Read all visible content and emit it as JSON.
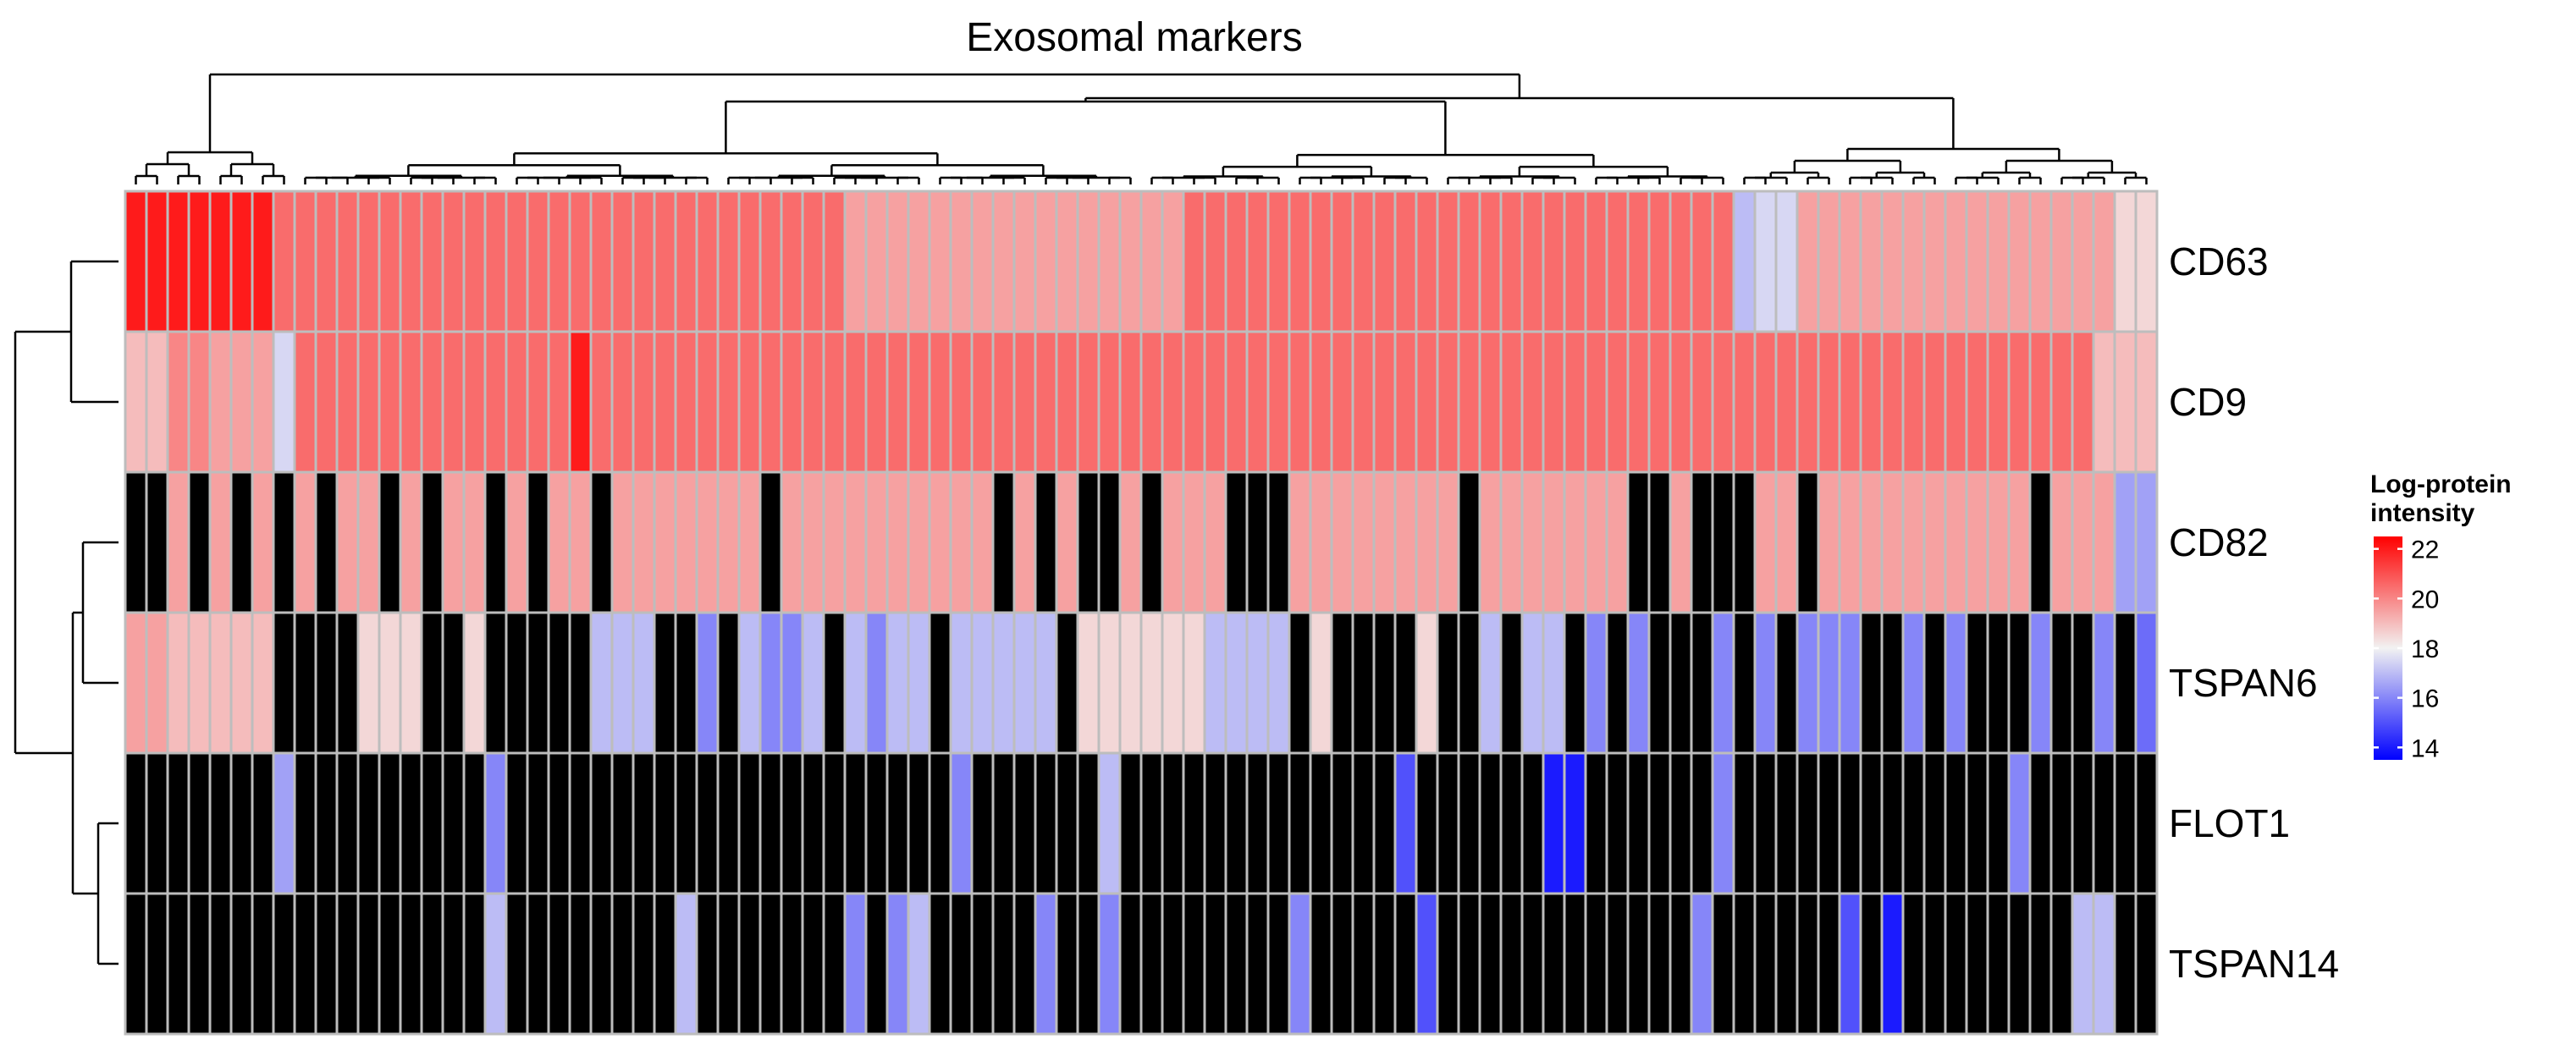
{
  "chart_data": {
    "type": "heatmap",
    "title": "Exosomal markers",
    "rows": [
      "CD63",
      "CD9",
      "CD82",
      "TSPAN6",
      "FLOT1",
      "TSPAN14"
    ],
    "n_columns": 96,
    "missing_color": "#000000",
    "cell_border_color": "#bdbdbd",
    "legend": {
      "title_line1": "Log-protein",
      "title_line2": "intensity",
      "position": "right",
      "ticks": [
        22,
        20,
        18,
        16,
        14
      ],
      "range": [
        13.5,
        22.5
      ],
      "colors": {
        "low": "#0000ff",
        "mid": "#f2f2f2",
        "high": "#ff0000",
        "mid_value": 18
      }
    },
    "values": [
      [
        22,
        22,
        22,
        22,
        22,
        22,
        22,
        20.5,
        20.5,
        20.5,
        20.5,
        20.5,
        20.5,
        20.5,
        20.5,
        20.5,
        20.5,
        20.5,
        20.5,
        20.5,
        20.5,
        20.5,
        20.5,
        20.5,
        20.5,
        20.5,
        20.5,
        20.5,
        20.5,
        20.5,
        20.5,
        20.5,
        20.5,
        20.5,
        19.5,
        19.5,
        19.5,
        19.5,
        19.5,
        19.5,
        19.5,
        19.5,
        19.5,
        19.5,
        19.5,
        19.5,
        19.5,
        19.5,
        19.5,
        19.5,
        20.5,
        20.5,
        20.5,
        20.5,
        20.5,
        20.5,
        20.5,
        20.5,
        20.5,
        20.5,
        20.5,
        20.5,
        20.5,
        20.5,
        20.5,
        20.5,
        20.5,
        20.5,
        20.5,
        20.5,
        20.5,
        20.5,
        20.5,
        20.5,
        20.5,
        20.5,
        17,
        17.5,
        17.5,
        19.5,
        19.5,
        19.5,
        19.5,
        19.5,
        19.5,
        19.5,
        19.5,
        19.5,
        19.5,
        19.5,
        19.5,
        19.5,
        19.5,
        19.5,
        18.5,
        18.5
      ],
      [
        19,
        19,
        20,
        20,
        19.5,
        19.5,
        19.5,
        17.5,
        20.5,
        20.5,
        20.5,
        20.5,
        20.5,
        20.5,
        20.5,
        20.5,
        20.5,
        20.5,
        20.5,
        20.5,
        20.5,
        22,
        20.5,
        20.5,
        20.5,
        20.5,
        20.5,
        20.5,
        20.5,
        20.5,
        20.5,
        20.5,
        20.5,
        20.5,
        20.5,
        20.5,
        20.5,
        20.5,
        20.5,
        20.5,
        20.5,
        20.5,
        20.5,
        20.5,
        20.5,
        20.5,
        20.5,
        20.5,
        20.5,
        20.5,
        20.5,
        20.5,
        20.5,
        20.5,
        20.5,
        20.5,
        20.5,
        20.5,
        20.5,
        20.5,
        20.5,
        20.5,
        20.5,
        20.5,
        20.5,
        20.5,
        20.5,
        20.5,
        20.5,
        20.5,
        20.5,
        20.5,
        20.5,
        20.5,
        20.5,
        20.5,
        20.5,
        20.5,
        20.5,
        20.5,
        20.5,
        20.5,
        20.5,
        20.5,
        20.5,
        20.5,
        20.5,
        20.5,
        20.5,
        20.5,
        20.5,
        20.5,
        20.5,
        19,
        19,
        19
      ],
      [
        null,
        null,
        19.5,
        null,
        19.5,
        null,
        19.5,
        null,
        19.5,
        null,
        19.5,
        19.5,
        null,
        19.5,
        null,
        19.5,
        19.5,
        null,
        19.5,
        null,
        19.5,
        19.5,
        null,
        19.5,
        19.5,
        19.5,
        19.5,
        19.5,
        19.5,
        19.5,
        null,
        19.5,
        19.5,
        19.5,
        19.5,
        19.5,
        19.5,
        19.5,
        19.5,
        19.5,
        19.5,
        null,
        19.5,
        null,
        19.5,
        null,
        null,
        19.5,
        null,
        19.5,
        19.5,
        19.5,
        null,
        null,
        null,
        19.5,
        19.5,
        19.5,
        19.5,
        19.5,
        19.5,
        19.5,
        19.5,
        null,
        19.5,
        19.5,
        19.5,
        19.5,
        19.5,
        19.5,
        19.5,
        null,
        null,
        19.5,
        null,
        null,
        null,
        19.5,
        19.5,
        null,
        19.5,
        19.5,
        19.5,
        19.5,
        19.5,
        19.5,
        19.5,
        19.5,
        19.5,
        19.5,
        null,
        19.5,
        19.5,
        19.5,
        16.5,
        16.5
      ],
      [
        19.5,
        19.5,
        19,
        19,
        19,
        19,
        19,
        null,
        null,
        null,
        null,
        18.5,
        18.5,
        18.5,
        null,
        null,
        18.5,
        null,
        null,
        null,
        null,
        null,
        17,
        17,
        17,
        null,
        null,
        16,
        null,
        17,
        16,
        16,
        17,
        null,
        17,
        16,
        17,
        17,
        null,
        17,
        17,
        17,
        17,
        17,
        null,
        18.5,
        18.5,
        18.5,
        18.5,
        18.5,
        18.5,
        17,
        17,
        17,
        17,
        null,
        18.5,
        null,
        null,
        null,
        null,
        18.5,
        null,
        null,
        17,
        null,
        17,
        17,
        null,
        16,
        null,
        16,
        null,
        null,
        null,
        16,
        null,
        16,
        null,
        16,
        16,
        16,
        null,
        null,
        16,
        null,
        16,
        null,
        null,
        null,
        16,
        null,
        null,
        16,
        null,
        15.5
      ],
      [
        null,
        null,
        null,
        null,
        null,
        null,
        null,
        16.5,
        null,
        null,
        null,
        null,
        null,
        null,
        null,
        null,
        null,
        16,
        null,
        null,
        null,
        null,
        null,
        null,
        null,
        null,
        null,
        null,
        null,
        null,
        null,
        null,
        null,
        null,
        null,
        null,
        null,
        null,
        null,
        16,
        null,
        null,
        null,
        null,
        null,
        null,
        17,
        null,
        null,
        null,
        null,
        null,
        null,
        null,
        null,
        null,
        null,
        null,
        null,
        null,
        15,
        null,
        null,
        null,
        null,
        null,
        null,
        14,
        14,
        null,
        null,
        null,
        null,
        null,
        null,
        16,
        null,
        null,
        null,
        null,
        null,
        null,
        null,
        null,
        null,
        null,
        null,
        null,
        null,
        16,
        null,
        null,
        null,
        null,
        null,
        null
      ],
      [
        null,
        null,
        null,
        null,
        null,
        null,
        null,
        null,
        null,
        null,
        null,
        null,
        null,
        null,
        null,
        null,
        null,
        17,
        null,
        null,
        null,
        null,
        null,
        null,
        null,
        null,
        17,
        null,
        null,
        null,
        null,
        null,
        null,
        null,
        16,
        null,
        16,
        17,
        null,
        null,
        null,
        null,
        null,
        16,
        null,
        null,
        16,
        null,
        null,
        null,
        null,
        null,
        null,
        null,
        null,
        16,
        null,
        null,
        null,
        null,
        null,
        15,
        null,
        null,
        null,
        null,
        null,
        null,
        null,
        null,
        null,
        null,
        null,
        null,
        16,
        null,
        null,
        null,
        null,
        null,
        null,
        15,
        null,
        14,
        null,
        null,
        null,
        null,
        null,
        null,
        null,
        null,
        17,
        17,
        null,
        null
      ]
    ]
  }
}
